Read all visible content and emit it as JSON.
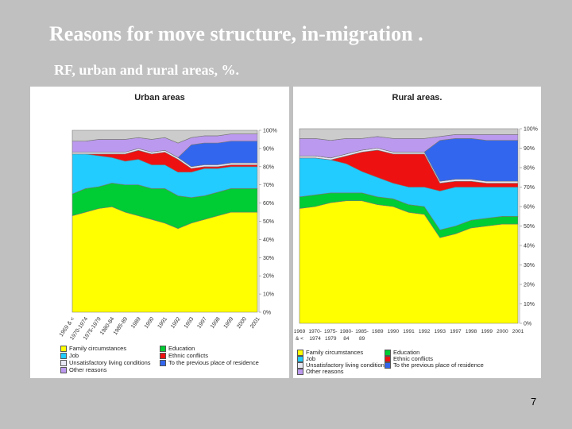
{
  "title": "Reasons for move structure, in-migration .",
  "subtitle": "RF, urban and rural areas, %.",
  "page_number": "7",
  "colors": {
    "family": "#ffff00",
    "education": "#00cc33",
    "job": "#22ccff",
    "ethnic": "#ee1111",
    "unsatisfactory": "#e8e8f4",
    "previous": "#3366ee",
    "other": "#bb99ee",
    "top_gray": "#cccccc"
  },
  "chart_data": [
    {
      "type": "area",
      "title": "Urban areas",
      "categories": [
        "1969 & <",
        "1970-1974",
        "1975-1979",
        "1980-84",
        "1985-89",
        "1989",
        "1990",
        "1991",
        "1992",
        "1993",
        "1997",
        "1998",
        "1999",
        "2000",
        "2001"
      ],
      "yticks": [
        "100%",
        "90%",
        "80%",
        "70%",
        "60%",
        "50%",
        "40%",
        "30%",
        "20%",
        "10%",
        "0%"
      ],
      "ylim": [
        0,
        100
      ],
      "series": [
        {
          "name": "Family circumstances",
          "values": [
            53,
            55,
            57,
            58,
            55,
            53,
            51,
            49,
            46,
            49,
            51,
            53,
            55,
            55,
            55
          ]
        },
        {
          "name": "Education",
          "values": [
            12,
            13,
            12,
            13,
            15,
            17,
            17,
            19,
            18,
            14,
            13,
            13,
            13,
            13,
            13
          ]
        },
        {
          "name": "Job",
          "values": [
            22,
            19,
            17,
            14,
            13,
            14,
            13,
            13,
            13,
            14,
            15,
            13,
            12,
            12,
            12
          ]
        },
        {
          "name": "Ethnic conflicts",
          "values": [
            0,
            0,
            1,
            2,
            4,
            5,
            6,
            7,
            7,
            2,
            1,
            1,
            1,
            1,
            1
          ]
        },
        {
          "name": "Unsatisfactory living conditions",
          "values": [
            1,
            1,
            1,
            1,
            1,
            1,
            1,
            1,
            1,
            1,
            1,
            1,
            1,
            1,
            1
          ]
        },
        {
          "name": "To the previous place of residence",
          "values": [
            0,
            0,
            0,
            0,
            0,
            0,
            0,
            0,
            0,
            12,
            12,
            12,
            12,
            12,
            12
          ]
        },
        {
          "name": "Other reasons",
          "values": [
            6,
            6,
            7,
            7,
            7,
            6,
            7,
            7,
            8,
            4,
            4,
            4,
            4,
            4,
            4
          ]
        }
      ]
    },
    {
      "type": "area",
      "title": "Rural areas.",
      "categories": [
        "1969 & <",
        "1970-1974",
        "1975-1979",
        "1980-84",
        "1985-89",
        "1989",
        "1990",
        "1991",
        "1992",
        "1993",
        "1997",
        "1998",
        "1999",
        "2000",
        "2001"
      ],
      "category_lines": [
        [
          "1969",
          "& <"
        ],
        [
          "1970-",
          "1974"
        ],
        [
          "1975-",
          "1979"
        ],
        [
          "1980-",
          "84"
        ],
        [
          "1985-",
          "89"
        ],
        [
          "1989"
        ],
        [
          "1990"
        ],
        [
          "1991"
        ],
        [
          "1992"
        ],
        [
          "1993"
        ],
        [
          "1997"
        ],
        [
          "1998"
        ],
        [
          "1999"
        ],
        [
          "2000"
        ],
        [
          "2001"
        ]
      ],
      "yticks": [
        "100%",
        "90%",
        "80%",
        "70%",
        "60%",
        "50%",
        "40%",
        "30%",
        "20%",
        "10%",
        "0%"
      ],
      "ylim": [
        0,
        100
      ],
      "series": [
        {
          "name": "Family circumstances",
          "values": [
            59,
            60,
            62,
            63,
            63,
            61,
            60,
            57,
            56,
            44,
            46,
            49,
            50,
            51,
            51
          ]
        },
        {
          "name": "Education",
          "values": [
            6,
            6,
            5,
            4,
            4,
            4,
            4,
            4,
            4,
            4,
            4,
            4,
            4,
            4,
            4
          ]
        },
        {
          "name": "Job",
          "values": [
            20,
            19,
            17,
            15,
            11,
            10,
            8,
            9,
            10,
            20,
            20,
            17,
            16,
            15,
            15
          ]
        },
        {
          "name": "Ethnic conflicts",
          "values": [
            0,
            0,
            0,
            4,
            10,
            14,
            15,
            17,
            17,
            4,
            3,
            3,
            2,
            2,
            2
          ]
        },
        {
          "name": "Unsatisfactory living conditions",
          "values": [
            1,
            1,
            1,
            1,
            1,
            1,
            1,
            1,
            1,
            1,
            1,
            1,
            1,
            1,
            1
          ]
        },
        {
          "name": "To the previous place of residence",
          "values": [
            0,
            0,
            0,
            0,
            0,
            0,
            0,
            0,
            0,
            21,
            21,
            21,
            21,
            21,
            21
          ]
        },
        {
          "name": "Other reasons",
          "values": [
            9,
            9,
            9,
            8,
            6,
            6,
            7,
            7,
            7,
            2,
            2,
            2,
            3,
            3,
            3
          ]
        }
      ]
    }
  ],
  "legend_urban": [
    "Family circumstances",
    "Education",
    "Job",
    "Ethnic conflicts",
    "Unsatisfactory living conditions",
    "To the previous place of residence",
    "Other reasons"
  ],
  "legend_rural": [
    "Family circumstances",
    "Education",
    "Job",
    "Ethnic conflicts",
    "Unsatisfactory living conditions",
    "To the previous place of residence",
    "Other reasons"
  ]
}
